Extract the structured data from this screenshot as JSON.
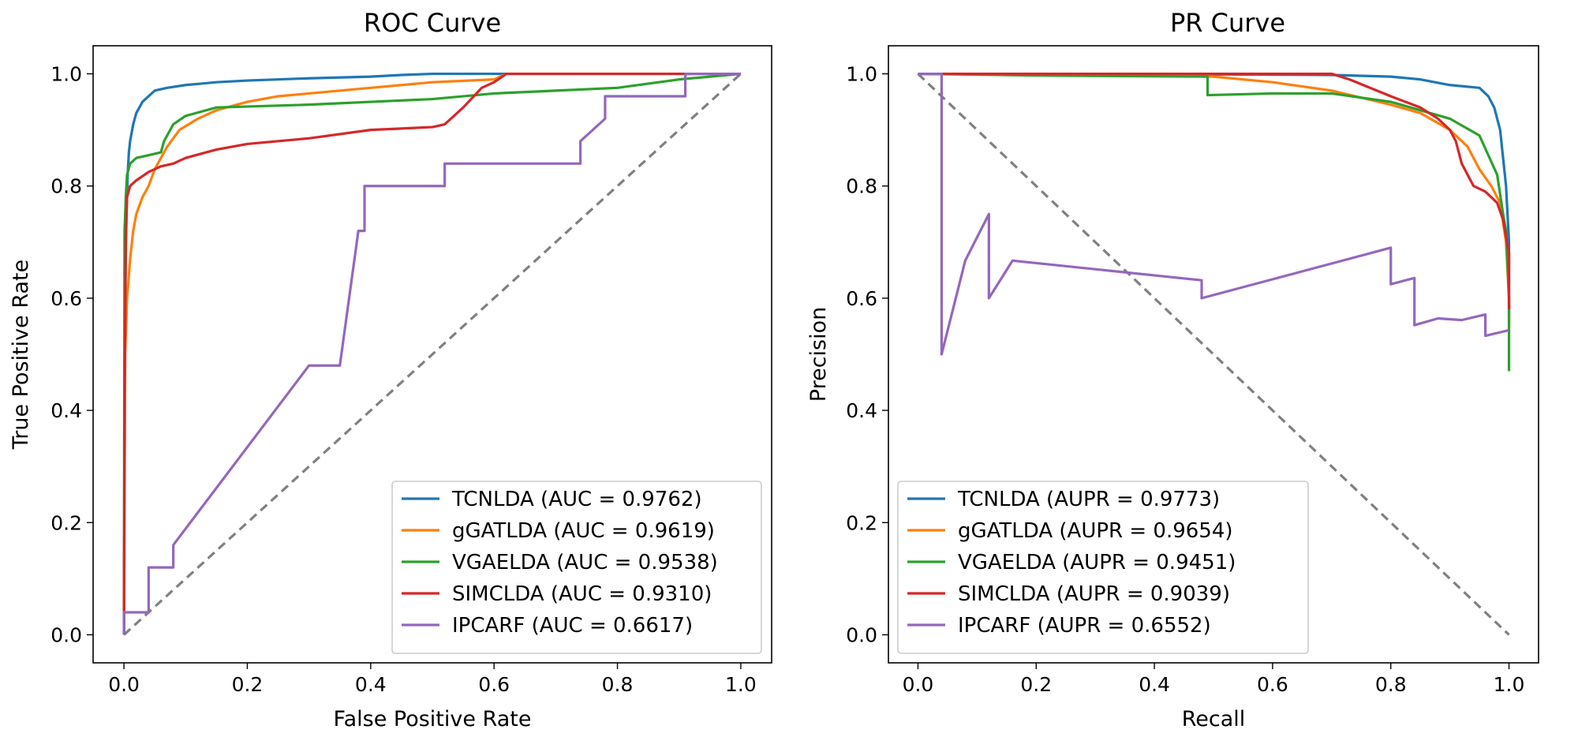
{
  "chart_data": [
    {
      "type": "line",
      "id": "roc",
      "title": "ROC Curve",
      "xlabel": "False Positive Rate",
      "ylabel": "True Positive Rate",
      "xlim": [
        -0.05,
        1.05
      ],
      "ylim": [
        -0.05,
        1.05
      ],
      "xticks": [
        "0.0",
        "0.2",
        "0.4",
        "0.6",
        "0.8",
        "1.0"
      ],
      "yticks": [
        "0.0",
        "0.2",
        "0.4",
        "0.6",
        "0.8",
        "1.0"
      ],
      "legend_position": "lower-right",
      "reference_line": {
        "style": "dashed",
        "color": "#808080",
        "x": [
          0,
          1
        ],
        "y": [
          0,
          1
        ]
      },
      "series": [
        {
          "name": "TCNLDA (AUC = 0.9762)",
          "color": "#1f77b4",
          "x": [
            0,
            0.002,
            0.004,
            0.006,
            0.008,
            0.01,
            0.015,
            0.02,
            0.03,
            0.04,
            0.05,
            0.07,
            0.1,
            0.15,
            0.2,
            0.3,
            0.4,
            0.45,
            0.5,
            0.6,
            0.8,
            1.0
          ],
          "y": [
            0,
            0.6,
            0.75,
            0.82,
            0.86,
            0.88,
            0.91,
            0.93,
            0.95,
            0.96,
            0.97,
            0.975,
            0.98,
            0.985,
            0.988,
            0.992,
            0.995,
            0.998,
            1.0,
            1.0,
            1.0,
            1.0
          ]
        },
        {
          "name": "gGATLDA (AUC = 0.9619)",
          "color": "#ff7f0e",
          "x": [
            0,
            0.002,
            0.005,
            0.01,
            0.015,
            0.02,
            0.03,
            0.04,
            0.05,
            0.07,
            0.09,
            0.12,
            0.15,
            0.2,
            0.25,
            0.3,
            0.4,
            0.5,
            0.6,
            0.62,
            0.7,
            0.8,
            1.0
          ],
          "y": [
            0,
            0.5,
            0.6,
            0.67,
            0.72,
            0.75,
            0.78,
            0.8,
            0.83,
            0.87,
            0.9,
            0.92,
            0.935,
            0.95,
            0.96,
            0.965,
            0.975,
            0.985,
            0.99,
            1.0,
            1.0,
            1.0,
            1.0
          ]
        },
        {
          "name": "VGAELDA (AUC = 0.9538)",
          "color": "#2ca02c",
          "x": [
            0,
            0.001,
            0.003,
            0.005,
            0.01,
            0.02,
            0.04,
            0.06,
            0.065,
            0.08,
            0.1,
            0.15,
            0.3,
            0.5,
            0.6,
            0.7,
            0.8,
            0.9,
            1.0
          ],
          "y": [
            0,
            0.72,
            0.78,
            0.82,
            0.84,
            0.85,
            0.855,
            0.86,
            0.88,
            0.91,
            0.925,
            0.94,
            0.945,
            0.955,
            0.965,
            0.97,
            0.975,
            0.99,
            1.0
          ]
        },
        {
          "name": "SIMCLDA (AUC = 0.9310)",
          "color": "#d62728",
          "x": [
            0,
            0.001,
            0.003,
            0.005,
            0.01,
            0.02,
            0.04,
            0.06,
            0.08,
            0.1,
            0.15,
            0.2,
            0.3,
            0.4,
            0.5,
            0.52,
            0.55,
            0.58,
            0.6,
            0.62,
            0.7,
            0.8,
            1.0
          ],
          "y": [
            0,
            0.42,
            0.7,
            0.78,
            0.8,
            0.81,
            0.825,
            0.835,
            0.84,
            0.85,
            0.865,
            0.875,
            0.885,
            0.9,
            0.905,
            0.91,
            0.94,
            0.975,
            0.985,
            1.0,
            1.0,
            1.0,
            1.0
          ]
        },
        {
          "name": "IPCARF (AUC = 0.6617)",
          "color": "#9467bd",
          "x": [
            0,
            0,
            0.04,
            0.04,
            0.08,
            0.08,
            0.3,
            0.3,
            0.35,
            0.38,
            0.39,
            0.39,
            0.52,
            0.52,
            0.74,
            0.74,
            0.76,
            0.78,
            0.78,
            0.91,
            0.91,
            1.0
          ],
          "y": [
            0,
            0.04,
            0.04,
            0.12,
            0.12,
            0.16,
            0.48,
            0.48,
            0.48,
            0.72,
            0.72,
            0.8,
            0.8,
            0.84,
            0.84,
            0.88,
            0.9,
            0.92,
            0.96,
            0.96,
            1.0,
            1.0
          ]
        }
      ]
    },
    {
      "type": "line",
      "id": "pr",
      "title": "PR Curve",
      "xlabel": "Recall",
      "ylabel": "Precision",
      "xlim": [
        -0.05,
        1.05
      ],
      "ylim": [
        -0.05,
        1.05
      ],
      "xticks": [
        "0.0",
        "0.2",
        "0.4",
        "0.6",
        "0.8",
        "1.0"
      ],
      "yticks": [
        "0.0",
        "0.2",
        "0.4",
        "0.6",
        "0.8",
        "1.0"
      ],
      "legend_position": "lower-left",
      "reference_line": {
        "style": "dashed",
        "color": "#808080",
        "x": [
          0,
          1
        ],
        "y": [
          1,
          0
        ]
      },
      "series": [
        {
          "name": "TCNLDA (AUPR = 0.9773)",
          "color": "#1f77b4",
          "x": [
            0,
            0.3,
            0.5,
            0.7,
            0.8,
            0.85,
            0.9,
            0.95,
            0.965,
            0.975,
            0.985,
            0.99,
            0.995,
            1.0,
            1.0
          ],
          "y": [
            1.0,
            1.0,
            0.999,
            0.998,
            0.995,
            0.99,
            0.98,
            0.975,
            0.96,
            0.94,
            0.9,
            0.85,
            0.8,
            0.7,
            0.57
          ]
        },
        {
          "name": "gGATLDA (AUPR = 0.9654)",
          "color": "#ff7f0e",
          "x": [
            0,
            0.3,
            0.5,
            0.6,
            0.7,
            0.8,
            0.85,
            0.9,
            0.93,
            0.95,
            0.97,
            0.985,
            0.995,
            1.0,
            1.0
          ],
          "y": [
            1.0,
            1.0,
            0.995,
            0.985,
            0.97,
            0.945,
            0.93,
            0.9,
            0.87,
            0.83,
            0.8,
            0.77,
            0.7,
            0.6,
            0.55
          ]
        },
        {
          "name": "VGAELDA (AUPR = 0.9451)",
          "color": "#2ca02c",
          "x": [
            0,
            0.2,
            0.49,
            0.49,
            0.6,
            0.7,
            0.8,
            0.9,
            0.95,
            0.98,
            0.99,
            0.995,
            1.0,
            1.0
          ],
          "y": [
            1.0,
            0.997,
            0.995,
            0.962,
            0.965,
            0.965,
            0.95,
            0.92,
            0.89,
            0.82,
            0.75,
            0.72,
            0.6,
            0.47
          ]
        },
        {
          "name": "SIMCLDA (AUPR = 0.9039)",
          "color": "#d62728",
          "x": [
            0,
            0.3,
            0.6,
            0.7,
            0.73,
            0.8,
            0.85,
            0.88,
            0.9,
            0.91,
            0.92,
            0.94,
            0.96,
            0.98,
            0.99,
            1.0,
            1.0
          ],
          "y": [
            1.0,
            1.0,
            1.0,
            1.0,
            0.99,
            0.96,
            0.94,
            0.92,
            0.9,
            0.88,
            0.84,
            0.8,
            0.79,
            0.77,
            0.74,
            0.68,
            0.58
          ]
        },
        {
          "name": "IPCARF (AUPR = 0.6552)",
          "color": "#9467bd",
          "x": [
            0,
            0.04,
            0.04,
            0.04,
            0.08,
            0.12,
            0.12,
            0.16,
            0.48,
            0.48,
            0.8,
            0.8,
            0.84,
            0.84,
            0.88,
            0.92,
            0.96,
            0.96,
            1.0
          ],
          "y": [
            1.0,
            1.0,
            0.5,
            0.5,
            0.667,
            0.75,
            0.6,
            0.667,
            0.632,
            0.6,
            0.69,
            0.625,
            0.636,
            0.552,
            0.564,
            0.561,
            0.571,
            0.533,
            0.543
          ]
        }
      ]
    }
  ]
}
